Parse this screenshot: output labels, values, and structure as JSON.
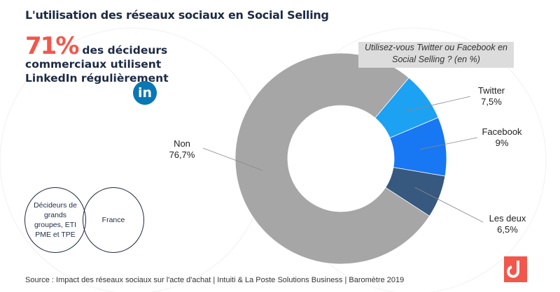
{
  "title": "L'utilisation des réseaux sociaux en Social Selling",
  "stat": {
    "value": "71%",
    "text": "des décideurs commerciaux utilisent LinkedIn régulièrement",
    "icon": "linkedin-icon",
    "icon_text": "in"
  },
  "venn": {
    "left": "Décideurs de grands groupes, ETI PME et TPE",
    "right": "France"
  },
  "source": "Source : Impact des réseaux sociaux sur l'acte d'achat |  Intuiti & La Poste Solutions Business |   Baromètre 2019",
  "chart_data": {
    "type": "pie",
    "donut": true,
    "title": "Utilisez-vous Twitter ou Facebook en Social Selling ? (en %)",
    "slices": [
      {
        "label": "Twitter",
        "value": 7.5,
        "display": "7,5%",
        "color": "#1da1f2"
      },
      {
        "label": "Facebook",
        "value": 9,
        "display": "9%",
        "color": "#1877f2"
      },
      {
        "label": "Les deux",
        "value": 6.5,
        "display": "6,5%",
        "color": "#37587f"
      },
      {
        "label": "Non",
        "value": 76.7,
        "display": "76,7%",
        "color": "#a6a6a6"
      }
    ]
  }
}
